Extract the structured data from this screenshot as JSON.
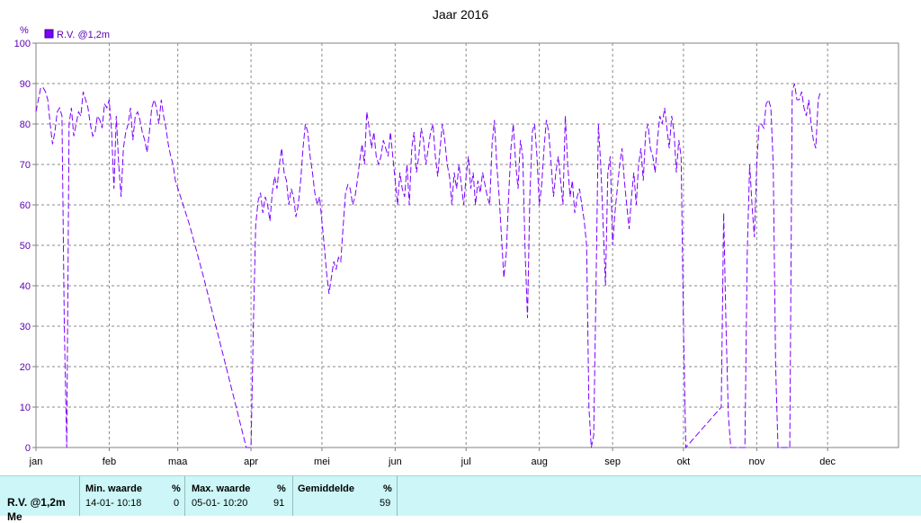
{
  "chart_data": {
    "type": "line",
    "title": "Jaar 2016",
    "ylabel": "%",
    "ylim": [
      0,
      100
    ],
    "yticks": [
      0,
      10,
      20,
      30,
      40,
      50,
      60,
      70,
      80,
      90,
      100
    ],
    "grid": true,
    "legend": "top-left",
    "series": [
      {
        "name": "R.V. @1,2m",
        "color": "#7a00ff",
        "points": [
          [
            1,
            83
          ],
          [
            2,
            86
          ],
          [
            3,
            89
          ],
          [
            4,
            89
          ],
          [
            5,
            88
          ],
          [
            6,
            86
          ],
          [
            7,
            80
          ],
          [
            8,
            75
          ],
          [
            9,
            78
          ],
          [
            10,
            83
          ],
          [
            11,
            84
          ],
          [
            12,
            82
          ],
          [
            13,
            30
          ],
          [
            14,
            0
          ],
          [
            15,
            80
          ],
          [
            16,
            84
          ],
          [
            17,
            77
          ],
          [
            18,
            80
          ],
          [
            19,
            83
          ],
          [
            20,
            82
          ],
          [
            21,
            88
          ],
          [
            22,
            86
          ],
          [
            23,
            84
          ],
          [
            24,
            80
          ],
          [
            25,
            77
          ],
          [
            26,
            78
          ],
          [
            27,
            82
          ],
          [
            28,
            81
          ],
          [
            29,
            79
          ],
          [
            30,
            85
          ],
          [
            31,
            84
          ],
          [
            32,
            86
          ],
          [
            33,
            78
          ],
          [
            34,
            64
          ],
          [
            35,
            82
          ],
          [
            36,
            70
          ],
          [
            37,
            62
          ],
          [
            38,
            74
          ],
          [
            39,
            78
          ],
          [
            40,
            80
          ],
          [
            41,
            84
          ],
          [
            42,
            76
          ],
          [
            43,
            82
          ],
          [
            44,
            83
          ],
          [
            45,
            81
          ],
          [
            46,
            78
          ],
          [
            47,
            76
          ],
          [
            48,
            73
          ],
          [
            49,
            78
          ],
          [
            50,
            84
          ],
          [
            51,
            86
          ],
          [
            52,
            84
          ],
          [
            53,
            80
          ],
          [
            54,
            86
          ],
          [
            55,
            82
          ],
          [
            56,
            79
          ],
          [
            57,
            75
          ],
          [
            58,
            72
          ],
          [
            59,
            70
          ],
          [
            60,
            66
          ],
          [
            66,
            55
          ],
          [
            72,
            42
          ],
          [
            78,
            28
          ],
          [
            84,
            14
          ],
          [
            90,
            0
          ],
          [
            91,
            0
          ],
          [
            92,
            0
          ],
          [
            93,
            30
          ],
          [
            94,
            55
          ],
          [
            95,
            61
          ],
          [
            96,
            63
          ],
          [
            97,
            58
          ],
          [
            98,
            62
          ],
          [
            99,
            60
          ],
          [
            100,
            56
          ],
          [
            101,
            63
          ],
          [
            102,
            67
          ],
          [
            103,
            64
          ],
          [
            104,
            70
          ],
          [
            105,
            74
          ],
          [
            106,
            68
          ],
          [
            107,
            66
          ],
          [
            108,
            60
          ],
          [
            109,
            64
          ],
          [
            110,
            62
          ],
          [
            111,
            57
          ],
          [
            112,
            60
          ],
          [
            113,
            66
          ],
          [
            114,
            74
          ],
          [
            115,
            80
          ],
          [
            116,
            78
          ],
          [
            117,
            72
          ],
          [
            118,
            68
          ],
          [
            119,
            63
          ],
          [
            120,
            60
          ],
          [
            121,
            62
          ],
          [
            122,
            56
          ],
          [
            123,
            50
          ],
          [
            124,
            43
          ],
          [
            125,
            38
          ],
          [
            126,
            42
          ],
          [
            127,
            46
          ],
          [
            128,
            44
          ],
          [
            129,
            47
          ],
          [
            130,
            46
          ],
          [
            131,
            55
          ],
          [
            132,
            63
          ],
          [
            133,
            65
          ],
          [
            134,
            64
          ],
          [
            135,
            60
          ],
          [
            136,
            62
          ],
          [
            137,
            66
          ],
          [
            138,
            71
          ],
          [
            139,
            75
          ],
          [
            140,
            70
          ],
          [
            141,
            83
          ],
          [
            142,
            79
          ],
          [
            143,
            74
          ],
          [
            144,
            78
          ],
          [
            145,
            72
          ],
          [
            146,
            70
          ],
          [
            147,
            72
          ],
          [
            148,
            76
          ],
          [
            149,
            74
          ],
          [
            150,
            72
          ],
          [
            151,
            78
          ],
          [
            152,
            72
          ],
          [
            153,
            66
          ],
          [
            154,
            60
          ],
          [
            155,
            68
          ],
          [
            156,
            64
          ],
          [
            157,
            62
          ],
          [
            158,
            70
          ],
          [
            159,
            60
          ],
          [
            160,
            74
          ],
          [
            161,
            78
          ],
          [
            162,
            68
          ],
          [
            163,
            72
          ],
          [
            164,
            79
          ],
          [
            165,
            76
          ],
          [
            166,
            70
          ],
          [
            167,
            74
          ],
          [
            168,
            78
          ],
          [
            169,
            80
          ],
          [
            170,
            72
          ],
          [
            171,
            67
          ],
          [
            172,
            74
          ],
          [
            173,
            80
          ],
          [
            174,
            76
          ],
          [
            175,
            70
          ],
          [
            176,
            67
          ],
          [
            177,
            60
          ],
          [
            178,
            68
          ],
          [
            179,
            64
          ],
          [
            180,
            70
          ],
          [
            181,
            65
          ],
          [
            182,
            60
          ],
          [
            183,
            67
          ],
          [
            184,
            72
          ],
          [
            185,
            64
          ],
          [
            186,
            68
          ],
          [
            187,
            60
          ],
          [
            188,
            66
          ],
          [
            189,
            63
          ],
          [
            190,
            68
          ],
          [
            191,
            65
          ],
          [
            192,
            62
          ],
          [
            193,
            60
          ],
          [
            194,
            75
          ],
          [
            195,
            81
          ],
          [
            196,
            70
          ],
          [
            197,
            62
          ],
          [
            198,
            52
          ],
          [
            199,
            42
          ],
          [
            200,
            48
          ],
          [
            201,
            62
          ],
          [
            202,
            74
          ],
          [
            203,
            80
          ],
          [
            204,
            70
          ],
          [
            205,
            64
          ],
          [
            206,
            76
          ],
          [
            207,
            72
          ],
          [
            208,
            48
          ],
          [
            209,
            32
          ],
          [
            210,
            62
          ],
          [
            211,
            78
          ],
          [
            212,
            80
          ],
          [
            213,
            72
          ],
          [
            214,
            60
          ],
          [
            215,
            65
          ],
          [
            216,
            74
          ],
          [
            217,
            81
          ],
          [
            218,
            78
          ],
          [
            219,
            70
          ],
          [
            220,
            62
          ],
          [
            221,
            68
          ],
          [
            222,
            72
          ],
          [
            223,
            66
          ],
          [
            224,
            60
          ],
          [
            225,
            82
          ],
          [
            226,
            70
          ],
          [
            227,
            62
          ],
          [
            228,
            66
          ],
          [
            229,
            58
          ],
          [
            230,
            62
          ],
          [
            231,
            64
          ],
          [
            232,
            60
          ],
          [
            233,
            56
          ],
          [
            234,
            50
          ],
          [
            235,
            10
          ],
          [
            236,
            0
          ],
          [
            237,
            3
          ],
          [
            238,
            40
          ],
          [
            239,
            80
          ],
          [
            240,
            70
          ],
          [
            241,
            55
          ],
          [
            242,
            40
          ],
          [
            243,
            68
          ],
          [
            244,
            72
          ],
          [
            245,
            50
          ],
          [
            246,
            58
          ],
          [
            247,
            64
          ],
          [
            248,
            70
          ],
          [
            249,
            74
          ],
          [
            250,
            66
          ],
          [
            251,
            60
          ],
          [
            252,
            54
          ],
          [
            253,
            62
          ],
          [
            254,
            68
          ],
          [
            255,
            60
          ],
          [
            256,
            70
          ],
          [
            257,
            74
          ],
          [
            258,
            66
          ],
          [
            259,
            78
          ],
          [
            260,
            80
          ],
          [
            261,
            74
          ],
          [
            262,
            72
          ],
          [
            263,
            68
          ],
          [
            264,
            76
          ],
          [
            265,
            82
          ],
          [
            266,
            80
          ],
          [
            267,
            84
          ],
          [
            268,
            79
          ],
          [
            269,
            74
          ],
          [
            270,
            82
          ],
          [
            271,
            78
          ],
          [
            272,
            68
          ],
          [
            273,
            76
          ],
          [
            274,
            72
          ],
          [
            275,
            30
          ],
          [
            276,
            0
          ],
          [
            291,
            10
          ],
          [
            292,
            58
          ],
          [
            293,
            30
          ],
          [
            294,
            8
          ],
          [
            295,
            0
          ],
          [
            301,
            0
          ],
          [
            302,
            48
          ],
          [
            303,
            70
          ],
          [
            304,
            60
          ],
          [
            305,
            52
          ],
          [
            306,
            70
          ],
          [
            307,
            80
          ],
          [
            308,
            80
          ],
          [
            309,
            79
          ],
          [
            310,
            85
          ],
          [
            311,
            86
          ],
          [
            312,
            84
          ],
          [
            313,
            70
          ],
          [
            314,
            20
          ],
          [
            315,
            0
          ],
          [
            320,
            0
          ],
          [
            321,
            88
          ],
          [
            322,
            90
          ],
          [
            323,
            86
          ],
          [
            324,
            86
          ],
          [
            325,
            88
          ],
          [
            326,
            84
          ],
          [
            327,
            82
          ],
          [
            328,
            86
          ],
          [
            329,
            80
          ],
          [
            330,
            76
          ],
          [
            331,
            74
          ],
          [
            332,
            86
          ],
          [
            333,
            88
          ]
        ]
      }
    ],
    "x_axis": {
      "labels": [
        "jan",
        "feb",
        "maa",
        "apr",
        "mei",
        "jun",
        "jul",
        "aug",
        "sep",
        "okt",
        "nov",
        "dec"
      ]
    }
  },
  "stats": {
    "series_label": "R.V. @1,2m",
    "series_label_2": "Me",
    "min_header": "Min. waarde",
    "min_unit": "%",
    "min_date": "14-01-  10:18",
    "min_value": "0",
    "max_header": "Max. waarde",
    "max_unit": "%",
    "max_date": "05-01-  10:20",
    "max_value": "91",
    "avg_header": "Gemiddelde",
    "avg_unit": "%",
    "avg_value": "59"
  }
}
